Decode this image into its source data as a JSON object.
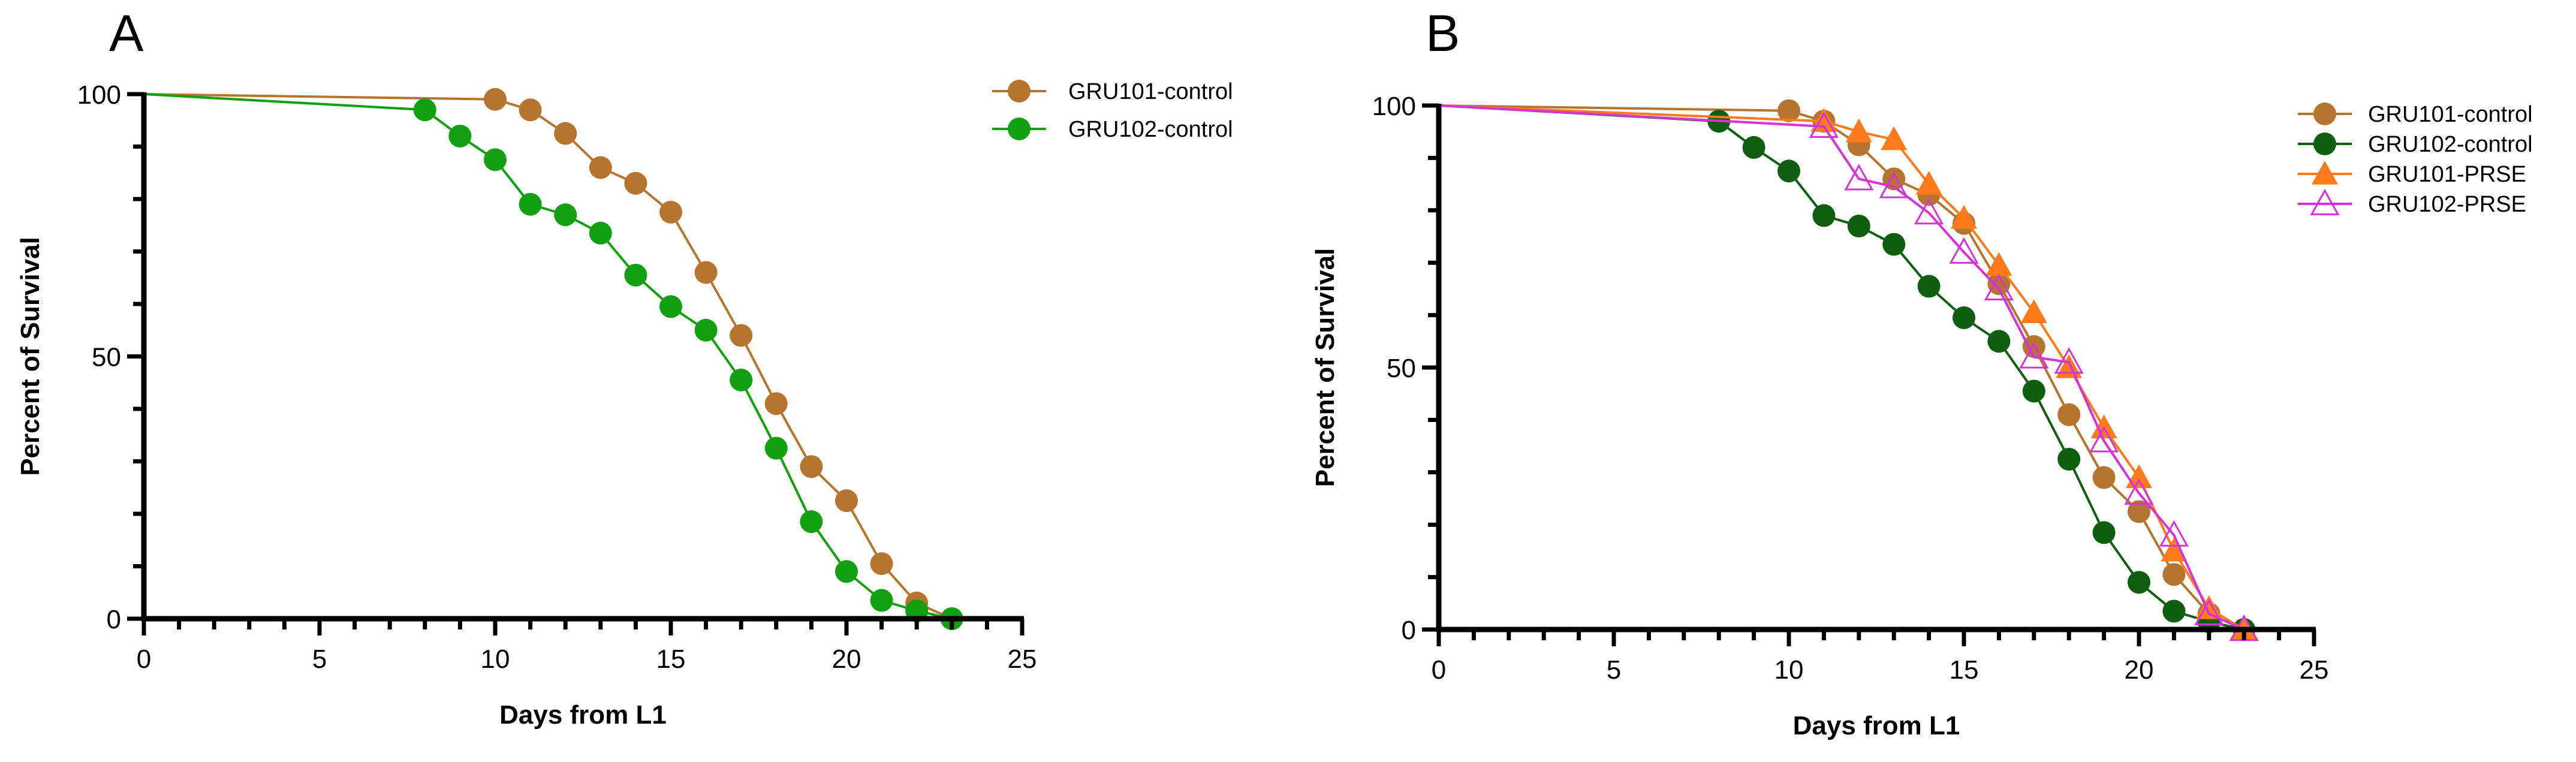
{
  "panels": [
    {
      "label": "A",
      "chart_data": {
        "type": "line",
        "xlabel": "Days from L1",
        "ylabel": "Percent of Survival",
        "xlim": [
          0,
          25
        ],
        "ylim": [
          0,
          100
        ],
        "xticks": [
          0,
          5,
          10,
          15,
          20,
          25
        ],
        "yticks": [
          0,
          50,
          100
        ],
        "grid": false,
        "legend_position": "top-right",
        "series": [
          {
            "name": "GRU101-control",
            "color": "#B5752E",
            "marker": "circle-filled",
            "x": [
              0,
              10,
              11,
              12,
              13,
              14,
              15,
              16,
              17,
              18,
              19,
              20,
              21,
              22,
              23
            ],
            "y": [
              100,
              99,
              97,
              92.5,
              86,
              83,
              77.5,
              66,
              54,
              41,
              29,
              22.5,
              10.5,
              3,
              0
            ],
            "markers": [
              10,
              11,
              12,
              13,
              14,
              15,
              16,
              17,
              18,
              19,
              20,
              21,
              22,
              23
            ]
          },
          {
            "name": "GRU102-control",
            "color": "#10A010",
            "marker": "circle-filled",
            "x": [
              0,
              8,
              9,
              10,
              11,
              12,
              13,
              14,
              15,
              16,
              17,
              18,
              19,
              20,
              21,
              22,
              23
            ],
            "y": [
              100,
              97,
              92,
              87.5,
              79,
              77,
              73.5,
              65.5,
              59.5,
              55,
              45.5,
              32.5,
              18.5,
              9,
              3.5,
              1.5,
              0
            ],
            "markers": [
              8,
              9,
              10,
              11,
              12,
              13,
              14,
              15,
              16,
              17,
              18,
              19,
              20,
              21,
              22,
              23
            ]
          }
        ]
      }
    },
    {
      "label": "B",
      "chart_data": {
        "type": "line",
        "xlabel": "Days from L1",
        "ylabel": "Percent of Survival",
        "xlim": [
          0,
          25
        ],
        "ylim": [
          0,
          100
        ],
        "xticks": [
          0,
          5,
          10,
          15,
          20,
          25
        ],
        "yticks": [
          0,
          50,
          100
        ],
        "grid": false,
        "legend_position": "top-right",
        "series": [
          {
            "name": "GRU101-control",
            "color": "#B5752E",
            "marker": "circle-filled",
            "x": [
              0,
              10,
              11,
              12,
              13,
              14,
              15,
              16,
              17,
              18,
              19,
              20,
              21,
              22,
              23
            ],
            "y": [
              100,
              99,
              97,
              92.5,
              86,
              83,
              77.5,
              66,
              54,
              41,
              29,
              22.5,
              10.5,
              3,
              0
            ],
            "markers": [
              10,
              11,
              12,
              13,
              14,
              15,
              16,
              17,
              18,
              19,
              20,
              21,
              22,
              23
            ]
          },
          {
            "name": "GRU102-control",
            "color": "#0E5E10",
            "marker": "circle-filled",
            "x": [
              0,
              8,
              9,
              10,
              11,
              12,
              13,
              14,
              15,
              16,
              17,
              18,
              19,
              20,
              21,
              22,
              23
            ],
            "y": [
              100,
              97,
              92,
              87.5,
              79,
              77,
              73.5,
              65.5,
              59.5,
              55,
              45.5,
              32.5,
              18.5,
              9,
              3.5,
              1.5,
              0
            ],
            "markers": [
              8,
              9,
              10,
              11,
              12,
              13,
              14,
              15,
              16,
              17,
              18,
              19,
              20,
              21,
              22,
              23
            ]
          },
          {
            "name": "GRU101-PRSE",
            "color": "#FF7A1A",
            "marker": "triangle-filled",
            "x": [
              0,
              11,
              12,
              13,
              14,
              15,
              16,
              17,
              18,
              19,
              20,
              21,
              22,
              23
            ],
            "y": [
              100,
              97,
              95,
              93.5,
              85,
              78.5,
              69.5,
              60.5,
              50,
              38.5,
              29,
              15,
              4,
              0
            ],
            "markers": [
              11,
              12,
              13,
              14,
              15,
              16,
              17,
              18,
              19,
              20,
              21,
              22,
              23
            ]
          },
          {
            "name": "GRU102-PRSE",
            "color": "#D633D6",
            "marker": "triangle-open",
            "x": [
              0,
              11,
              12,
              13,
              14,
              15,
              16,
              17,
              18,
              19,
              20,
              21,
              22,
              23
            ],
            "y": [
              100,
              96,
              86,
              84.5,
              79.5,
              72,
              65,
              52,
              51,
              36,
              26,
              18,
              3,
              0
            ],
            "markers": [
              11,
              12,
              13,
              14,
              15,
              16,
              17,
              18,
              19,
              20,
              21,
              22,
              23
            ]
          }
        ]
      }
    }
  ]
}
